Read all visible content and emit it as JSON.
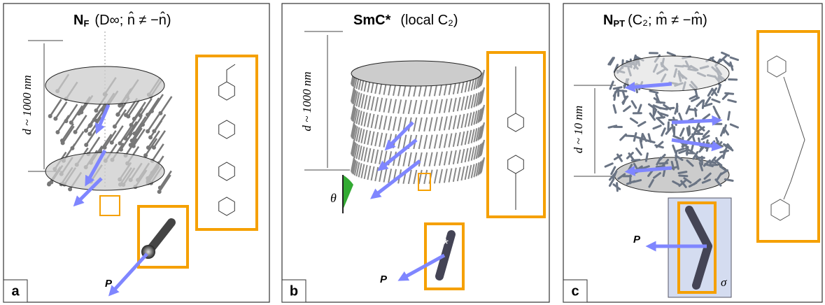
{
  "panels": [
    {
      "title_main": "N",
      "title_sub": "F",
      "title_rest": "(D∞; n̂ ≠ −n̂)",
      "dimension": "d ~ 1000 nm",
      "polarization": "P",
      "label": "a"
    },
    {
      "title_main": "SmC*",
      "title_rest": "(local C₂)",
      "dimension": "d ~ 1000 nm",
      "angle": "θ",
      "polarization": "P",
      "label": "b"
    },
    {
      "title_main": "N",
      "title_sub": "PT",
      "title_rest": "(C₂; m̂ ≠ −m̂)",
      "dimension": "d ~ 10 nm",
      "polarization": "P",
      "symmetry": "σ",
      "label": "c"
    }
  ]
}
